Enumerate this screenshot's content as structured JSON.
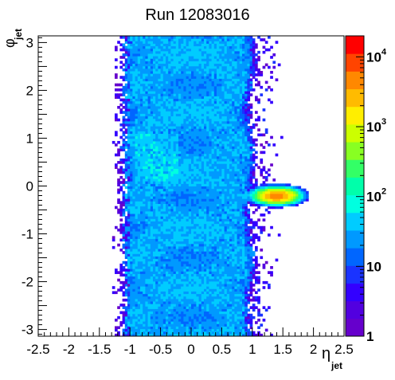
{
  "chart_data": {
    "type": "heatmap",
    "title": "Run 12083016",
    "xlabel": {
      "symbol": "η",
      "subscript": "jet"
    },
    "ylabel": {
      "symbol": "φ",
      "subscript": "jet"
    },
    "xlim": [
      -2.5,
      2.5
    ],
    "ylim": [
      -3.14,
      3.14
    ],
    "x_ticks": [
      "-2.5",
      "-2",
      "-1.5",
      "-1",
      "-0.5",
      "0",
      "0.5",
      "1",
      "1.5",
      "2",
      "2.5"
    ],
    "y_ticks": [
      "-3",
      "-2",
      "-1",
      "0",
      "1",
      "2",
      "3"
    ],
    "z_scale": "log",
    "zlim": [
      1,
      20000
    ],
    "colorbar_ticks": [
      {
        "base": "1",
        "exp": ""
      },
      {
        "base": "10",
        "exp": ""
      },
      {
        "base": "10",
        "exp": "2"
      },
      {
        "base": "10",
        "exp": "3"
      },
      {
        "base": "10",
        "exp": "4"
      }
    ],
    "colorbar_tick_values": [
      1,
      10,
      100,
      1000,
      10000
    ],
    "bins": {
      "nx": 120,
      "ny": 120
    },
    "regions": [
      {
        "description": "uniform band",
        "eta_range": [
          -1.1,
          1.0
        ],
        "phi_range": [
          -3.14,
          3.14
        ],
        "typical_counts": 30
      },
      {
        "description": "hot spot",
        "eta_center": 1.4,
        "phi_center": -0.2,
        "peak_counts": 5000
      }
    ],
    "colors": {
      "palette": [
        "#6600cc",
        "#5200e0",
        "#3300ff",
        "#1a33ff",
        "#0066ff",
        "#0099ff",
        "#00ccff",
        "#00ffe0",
        "#00ffaa",
        "#33ff66",
        "#88ff22",
        "#ccff00",
        "#ffee00",
        "#ffbb00",
        "#ff8800",
        "#ff4400",
        "#ff0000"
      ]
    }
  }
}
